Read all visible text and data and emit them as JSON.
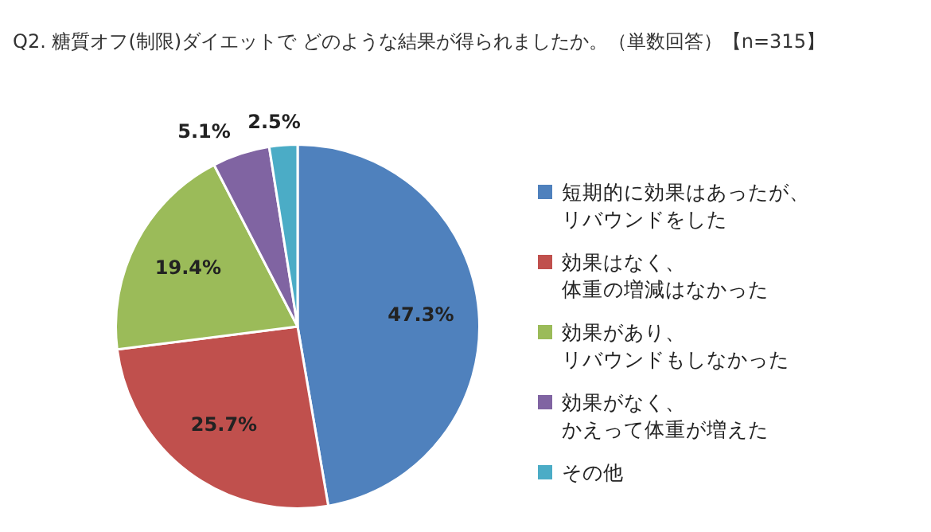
{
  "chart_data": {
    "type": "pie",
    "title": "Q2. 糖質オフ(制限)ダイエットで どのような結果が得られましたか。（単数回答）【n=315】",
    "categories": [
      "短期的に効果はあったが、リバウンドをした",
      "効果はなく、体重の増減はなかった",
      "効果があり、リバウンドもしなかった",
      "効果がなく、かえって体重が増えた",
      "その他"
    ],
    "values": [
      47.3,
      25.7,
      19.4,
      5.1,
      2.5
    ],
    "value_labels": [
      "47.3%",
      "25.7%",
      "19.4%",
      "5.1%",
      "2.5%"
    ],
    "colors": [
      "#4f81bd",
      "#c0504d",
      "#9bbb59",
      "#8064a2",
      "#4bacc6"
    ],
    "legend": "right"
  }
}
